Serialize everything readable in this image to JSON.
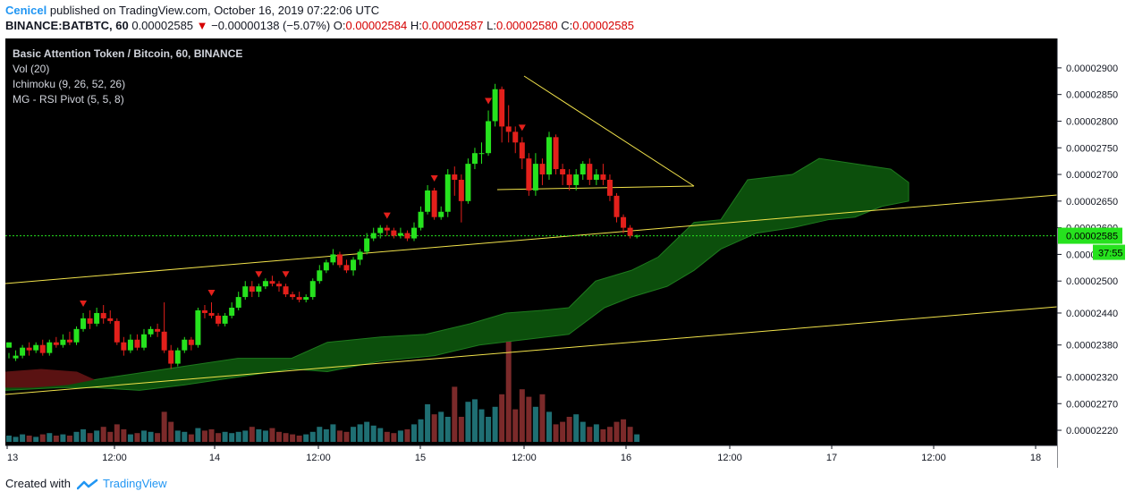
{
  "header": {
    "user": "Cenicel",
    "published": "published on TradingView.com, October 16, 2019 07:22:06 UTC",
    "symbol": "BINANCE:BATBTC, 60",
    "price": "0.00002585",
    "arrow": "▼",
    "change": "−0.00000138 (−5.07%)",
    "o_label": "O:",
    "o_value": "0.00002584",
    "h_label": "H:",
    "h_value": "0.00002587",
    "l_label": "L:",
    "l_value": "0.00002580",
    "c_label": "C:",
    "c_value": "0.00002585"
  },
  "footer": {
    "created_with": "Created with",
    "brand": "TradingView"
  },
  "colors": {
    "bg": "#000000",
    "up": "#26e21e",
    "down": "#e3201b",
    "vol_up": "#1f6f73",
    "vol_down": "#7b2a2a",
    "cloud_green": "#0c4f0c",
    "cloud_red": "#5a1212",
    "trendline": "#f2e34b",
    "price_line": "#26e21e",
    "signal": "#e3201b",
    "axis_text": "#d1d4dc",
    "last_price_bg": "#26e21e"
  },
  "chart_data": {
    "type": "candlestick",
    "title": "Basic Attention Token / Bitcoin, 60, BINANCE",
    "legend": [
      "Vol (20)",
      "Ichimoku (9, 26, 52, 26)",
      "MG - RSI Pivot (5, 5, 8)"
    ],
    "ylim": [
      2.21e-05,
      2.93e-05
    ],
    "y_ticks": [
      "0.00002900",
      "0.00002850",
      "0.00002800",
      "0.00002750",
      "0.00002700",
      "0.00002650",
      "0.00002600",
      "0.00002585",
      "0.00002550",
      "0.00002500",
      "0.00002440",
      "0.00002380",
      "0.00002320",
      "0.00002270",
      "0.00002220"
    ],
    "x_ticks": [
      "13",
      "12:00",
      "14",
      "12:00",
      "15",
      "12:00",
      "16",
      "12:00",
      "17",
      "12:00",
      "18"
    ],
    "last_price": "0.00002585",
    "countdown": "37:55",
    "price_label": "0.00002585",
    "candles": [
      [
        2.375,
        2.385,
        2.365,
        2.355
      ],
      [
        2.355,
        2.36,
        2.37,
        2.35
      ],
      [
        2.36,
        2.375,
        2.38,
        2.355
      ],
      [
        2.375,
        2.37,
        2.385,
        2.36
      ],
      [
        2.37,
        2.38,
        2.385,
        2.365
      ],
      [
        2.38,
        2.365,
        2.39,
        2.36
      ],
      [
        2.365,
        2.385,
        2.39,
        2.36
      ],
      [
        2.385,
        2.38,
        2.395,
        2.375
      ],
      [
        2.38,
        2.39,
        2.4,
        2.375
      ],
      [
        2.39,
        2.385,
        2.405,
        2.38
      ],
      [
        2.385,
        2.41,
        2.415,
        2.38
      ],
      [
        2.41,
        2.43,
        2.44,
        2.405
      ],
      [
        2.43,
        2.42,
        2.445,
        2.41
      ],
      [
        2.42,
        2.44,
        2.45,
        2.415
      ],
      [
        2.44,
        2.43,
        2.455,
        2.42
      ],
      [
        2.43,
        2.425,
        2.445,
        2.42
      ],
      [
        2.425,
        2.385,
        2.43,
        2.38
      ],
      [
        2.385,
        2.37,
        2.395,
        2.36
      ],
      [
        2.37,
        2.39,
        2.4,
        2.365
      ],
      [
        2.39,
        2.375,
        2.4,
        2.37
      ],
      [
        2.375,
        2.4,
        2.41,
        2.37
      ],
      [
        2.4,
        2.41,
        2.415,
        2.395
      ],
      [
        2.41,
        2.405,
        2.42,
        2.395
      ],
      [
        2.405,
        2.37,
        2.46,
        2.365
      ],
      [
        2.37,
        2.345,
        2.38,
        2.335
      ],
      [
        2.345,
        2.37,
        2.375,
        2.34
      ],
      [
        2.37,
        2.39,
        2.395,
        2.365
      ],
      [
        2.39,
        2.38,
        2.395,
        2.37
      ],
      [
        2.38,
        2.445,
        2.45,
        2.375
      ],
      [
        2.445,
        2.44,
        2.455,
        2.43
      ],
      [
        2.44,
        2.435,
        2.46,
        2.43
      ],
      [
        2.435,
        2.42,
        2.44,
        2.415
      ],
      [
        2.42,
        2.435,
        2.44,
        2.415
      ],
      [
        2.435,
        2.45,
        2.46,
        2.43
      ],
      [
        2.45,
        2.47,
        2.48,
        2.445
      ],
      [
        2.47,
        2.49,
        2.5,
        2.465
      ],
      [
        2.49,
        2.48,
        2.5,
        2.47
      ],
      [
        2.48,
        2.49,
        2.495,
        2.47
      ],
      [
        2.49,
        2.5,
        2.505,
        2.485
      ],
      [
        2.5,
        2.495,
        2.51,
        2.49
      ],
      [
        2.495,
        2.49,
        2.5,
        2.48
      ],
      [
        2.49,
        2.475,
        2.495,
        2.47
      ],
      [
        2.475,
        2.47,
        2.48,
        2.465
      ],
      [
        2.47,
        2.465,
        2.48,
        2.46
      ],
      [
        2.465,
        2.47,
        2.475,
        2.46
      ],
      [
        2.47,
        2.5,
        2.505,
        2.465
      ],
      [
        2.5,
        2.52,
        2.53,
        2.495
      ],
      [
        2.52,
        2.535,
        2.54,
        2.515
      ],
      [
        2.535,
        2.55,
        2.56,
        2.53
      ],
      [
        2.55,
        2.53,
        2.555,
        2.525
      ],
      [
        2.53,
        2.52,
        2.54,
        2.515
      ],
      [
        2.52,
        2.54,
        2.545,
        2.51
      ],
      [
        2.54,
        2.555,
        2.56,
        2.53
      ],
      [
        2.555,
        2.58,
        2.59,
        2.55
      ],
      [
        2.58,
        2.59,
        2.6,
        2.575
      ],
      [
        2.59,
        2.6,
        2.605,
        2.58
      ],
      [
        2.6,
        2.595,
        2.605,
        2.585
      ],
      [
        2.595,
        2.585,
        2.6,
        2.58
      ],
      [
        2.585,
        2.59,
        2.6,
        2.58
      ],
      [
        2.59,
        2.58,
        2.595,
        2.575
      ],
      [
        2.58,
        2.6,
        2.61,
        2.575
      ],
      [
        2.6,
        2.63,
        2.64,
        2.595
      ],
      [
        2.63,
        2.67,
        2.68,
        2.625
      ],
      [
        2.67,
        2.62,
        2.675,
        2.615
      ],
      [
        2.62,
        2.63,
        2.64,
        2.615
      ],
      [
        2.63,
        2.7,
        2.71,
        2.62
      ],
      [
        2.7,
        2.69,
        2.715,
        2.66
      ],
      [
        2.69,
        2.65,
        2.7,
        2.61
      ],
      [
        2.65,
        2.72,
        2.73,
        2.645
      ],
      [
        2.72,
        2.74,
        2.75,
        2.71
      ],
      [
        2.74,
        2.74,
        2.76,
        2.72
      ],
      [
        2.74,
        2.8,
        2.82,
        2.735
      ],
      [
        2.8,
        2.86,
        2.87,
        2.79
      ],
      [
        2.86,
        2.79,
        2.865,
        2.76
      ],
      [
        2.79,
        2.78,
        2.83,
        2.76
      ],
      [
        2.78,
        2.76,
        2.79,
        2.74
      ],
      [
        2.76,
        2.73,
        2.77,
        2.71
      ],
      [
        2.73,
        2.67,
        2.74,
        2.66
      ],
      [
        2.67,
        2.72,
        2.74,
        2.66
      ],
      [
        2.72,
        2.7,
        2.73,
        2.68
      ],
      [
        2.7,
        2.77,
        2.78,
        2.69
      ],
      [
        2.77,
        2.71,
        2.775,
        2.7
      ],
      [
        2.71,
        2.7,
        2.72,
        2.68
      ],
      [
        2.7,
        2.68,
        2.71,
        2.67
      ],
      [
        2.68,
        2.7,
        2.71,
        2.67
      ],
      [
        2.7,
        2.72,
        2.725,
        2.69
      ],
      [
        2.72,
        2.69,
        2.73,
        2.68
      ],
      [
        2.69,
        2.7,
        2.71,
        2.68
      ],
      [
        2.7,
        2.69,
        2.72,
        2.68
      ],
      [
        2.69,
        2.66,
        2.7,
        2.65
      ],
      [
        2.66,
        2.62,
        2.665,
        2.61
      ],
      [
        2.62,
        2.6,
        2.625,
        2.59
      ],
      [
        2.6,
        2.585,
        2.605,
        2.58
      ],
      [
        2.585,
        2.585,
        2.587,
        2.58
      ]
    ],
    "volumes": [
      5,
      4,
      6,
      5,
      4,
      6,
      7,
      5,
      6,
      5,
      8,
      10,
      7,
      9,
      12,
      8,
      14,
      10,
      6,
      7,
      9,
      8,
      7,
      24,
      16,
      9,
      8,
      6,
      11,
      9,
      10,
      7,
      8,
      7,
      8,
      9,
      12,
      10,
      9,
      11,
      8,
      7,
      6,
      5,
      6,
      8,
      12,
      10,
      14,
      9,
      8,
      12,
      14,
      16,
      13,
      11,
      8,
      7,
      9,
      10,
      14,
      18,
      30,
      22,
      24,
      20,
      44,
      20,
      32,
      34,
      26,
      20,
      28,
      38,
      80,
      26,
      42,
      36,
      28,
      38,
      24,
      14,
      16,
      20,
      22,
      16,
      12,
      14,
      10,
      12,
      16,
      18,
      12,
      6
    ]
  }
}
